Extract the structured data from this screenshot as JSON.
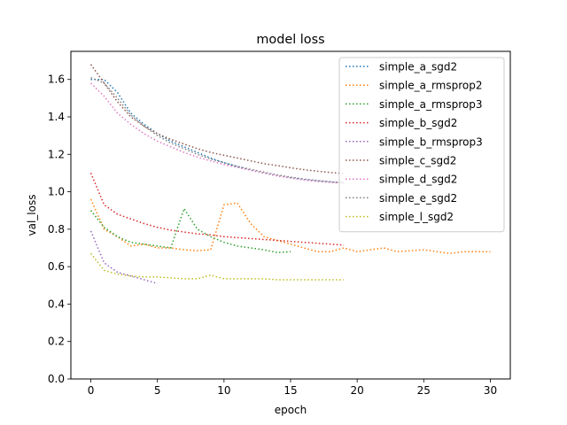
{
  "chart_data": {
    "type": "line",
    "title": "model loss",
    "xlabel": "epoch",
    "ylabel": "val_loss",
    "xlim": [
      -1.5,
      31.5
    ],
    "ylim": [
      0.0,
      1.75
    ],
    "xticks": [
      0,
      5,
      10,
      15,
      20,
      25,
      30
    ],
    "xtick_labels": [
      "0",
      "5",
      "10",
      "15",
      "20",
      "25",
      "30"
    ],
    "yticks": [
      0.0,
      0.2,
      0.4,
      0.6,
      0.8,
      1.0,
      1.2,
      1.4,
      1.6
    ],
    "ytick_labels": [
      "0.0",
      "0.2",
      "0.4",
      "0.6",
      "0.8",
      "1.0",
      "1.2",
      "1.4",
      "1.6"
    ],
    "grid": false,
    "legend_position": "top-right",
    "line_style": "dotted",
    "series": [
      {
        "name": "simple_a_sgd2",
        "color": "#1f77b4",
        "x": [
          0,
          1,
          2,
          3,
          4,
          5,
          6,
          7,
          8,
          9,
          10,
          11,
          12,
          13,
          14,
          15,
          16,
          17,
          18,
          19
        ],
        "values": [
          1.6,
          1.6,
          1.53,
          1.42,
          1.36,
          1.31,
          1.27,
          1.24,
          1.21,
          1.18,
          1.155,
          1.135,
          1.115,
          1.1,
          1.085,
          1.075,
          1.065,
          1.058,
          1.052,
          1.048
        ]
      },
      {
        "name": "simple_a_rmsprop2",
        "color": "#ff7f0e",
        "x": [
          0,
          1,
          2,
          3,
          4,
          5,
          6,
          7,
          8,
          9,
          10,
          11,
          12,
          13,
          14,
          15,
          16,
          17,
          18,
          19,
          20,
          21,
          22,
          23,
          24,
          25,
          26,
          27,
          28,
          29,
          30
        ],
        "values": [
          0.96,
          0.8,
          0.76,
          0.71,
          0.72,
          0.7,
          0.7,
          0.69,
          0.685,
          0.69,
          0.93,
          0.94,
          0.83,
          0.76,
          0.74,
          0.72,
          0.7,
          0.68,
          0.68,
          0.7,
          0.68,
          0.69,
          0.7,
          0.68,
          0.685,
          0.69,
          0.68,
          0.67,
          0.68,
          0.68,
          0.68
        ]
      },
      {
        "name": "simple_a_rmsprop3",
        "color": "#2ca02c",
        "x": [
          0,
          1,
          2,
          3,
          4,
          5,
          6,
          7,
          8,
          9,
          10,
          11,
          12,
          13,
          14,
          15
        ],
        "values": [
          0.9,
          0.81,
          0.76,
          0.73,
          0.72,
          0.71,
          0.7,
          0.91,
          0.8,
          0.76,
          0.73,
          0.71,
          0.7,
          0.69,
          0.675,
          0.68
        ]
      },
      {
        "name": "simple_b_sgd2",
        "color": "#d62728",
        "x": [
          0,
          1,
          2,
          3,
          4,
          5,
          6,
          7,
          8,
          9,
          10,
          11,
          12,
          13,
          14,
          15,
          16,
          17,
          18,
          19
        ],
        "values": [
          1.1,
          0.93,
          0.88,
          0.855,
          0.83,
          0.81,
          0.795,
          0.785,
          0.775,
          0.77,
          0.76,
          0.755,
          0.75,
          0.745,
          0.74,
          0.735,
          0.73,
          0.725,
          0.72,
          0.715
        ]
      },
      {
        "name": "simple_b_rmsprop3",
        "color": "#9467bd",
        "x": [
          0,
          1,
          2,
          3,
          4,
          5
        ],
        "values": [
          0.79,
          0.62,
          0.57,
          0.55,
          0.53,
          0.51
        ]
      },
      {
        "name": "simple_c_sgd2",
        "color": "#8c564b",
        "x": [
          0,
          1,
          2,
          3,
          4,
          5,
          6,
          7,
          8,
          9,
          10,
          11,
          12,
          13,
          14,
          15,
          16,
          17,
          18,
          19
        ],
        "values": [
          1.68,
          1.58,
          1.48,
          1.4,
          1.35,
          1.31,
          1.28,
          1.255,
          1.23,
          1.21,
          1.195,
          1.18,
          1.165,
          1.15,
          1.14,
          1.128,
          1.118,
          1.11,
          1.103,
          1.097
        ]
      },
      {
        "name": "simple_d_sgd2",
        "color": "#e377c2",
        "x": [
          0,
          1,
          2,
          3,
          4,
          5,
          6,
          7,
          8,
          9,
          10,
          11,
          12,
          13,
          14,
          15,
          16,
          17,
          18,
          19
        ],
        "values": [
          1.58,
          1.51,
          1.42,
          1.36,
          1.31,
          1.27,
          1.24,
          1.21,
          1.185,
          1.165,
          1.145,
          1.13,
          1.115,
          1.1,
          1.085,
          1.073,
          1.063,
          1.055,
          1.05,
          1.045
        ]
      },
      {
        "name": "simple_e_sgd2",
        "color": "#7f7f7f",
        "x": [
          0,
          1,
          2,
          3,
          4,
          5,
          6,
          7,
          8,
          9,
          10,
          11,
          12,
          13,
          14,
          15,
          16,
          17,
          18,
          19
        ],
        "values": [
          1.61,
          1.58,
          1.5,
          1.41,
          1.35,
          1.3,
          1.26,
          1.23,
          1.2,
          1.175,
          1.155,
          1.135,
          1.12,
          1.105,
          1.09,
          1.078,
          1.068,
          1.06,
          1.053,
          1.048
        ]
      },
      {
        "name": "simple_l_sgd2",
        "color": "#bcbd22",
        "x": [
          0,
          1,
          2,
          3,
          4,
          5,
          6,
          7,
          8,
          9,
          10,
          11,
          12,
          13,
          14,
          15,
          16,
          17,
          18,
          19
        ],
        "values": [
          0.67,
          0.58,
          0.56,
          0.55,
          0.545,
          0.545,
          0.54,
          0.535,
          0.535,
          0.555,
          0.535,
          0.535,
          0.535,
          0.535,
          0.53,
          0.53,
          0.53,
          0.53,
          0.53,
          0.53
        ]
      }
    ]
  }
}
